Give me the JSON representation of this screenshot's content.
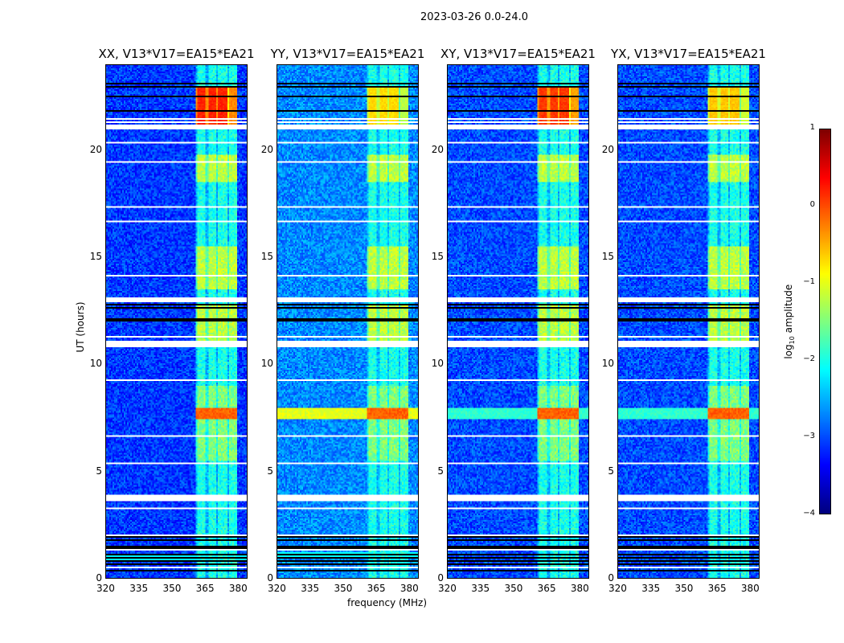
{
  "suptitle": "2023-03-26 0.0-24.0",
  "chart_data": {
    "type": "heatmap",
    "panels": [
      {
        "title": "XX, V13*V17=EA15*EA21",
        "band_level_late": 0.2,
        "background": -3.1
      },
      {
        "title": "YY, V13*V17=EA15*EA21",
        "band_level_late": -0.7,
        "background": -2.7
      },
      {
        "title": "XY, V13*V17=EA15*EA21",
        "band_level_late": 0.1,
        "background": -3.0
      },
      {
        "title": "YX, V13*V17=EA15*EA21",
        "band_level_late": -0.6,
        "background": -3.0
      }
    ],
    "xlabel": "frequency (MHz)",
    "ylabel": "UT (hours)",
    "xlim": [
      320,
      384.4
    ],
    "ylim": [
      0,
      24
    ],
    "xticks": [
      "320",
      "335",
      "350",
      "365",
      "380"
    ],
    "xtick_values": [
      320,
      335,
      350,
      365,
      380
    ],
    "yticks": [
      "0",
      "5",
      "10",
      "15",
      "20"
    ],
    "ytick_values": [
      0,
      5,
      10,
      15,
      20
    ],
    "rfi_band_mhz": [
      360.7,
      380.3
    ],
    "flagged_hours": [
      [
        3.6,
        3.8
      ],
      [
        10.8,
        11.05
      ],
      [
        12.9,
        13.1
      ],
      [
        21.0,
        21.2
      ]
    ],
    "rfi_event_hour": 7.7,
    "colorbar": {
      "label": "log",
      "label_sub": "10",
      "label_rest": " amplitude",
      "ticks": [
        "1",
        "0",
        "−1",
        "−2",
        "−3",
        "−4"
      ],
      "tick_values": [
        1,
        0,
        -1,
        -2,
        -3,
        -4
      ],
      "range": [
        -4,
        1
      ],
      "colormap": "jet"
    }
  }
}
